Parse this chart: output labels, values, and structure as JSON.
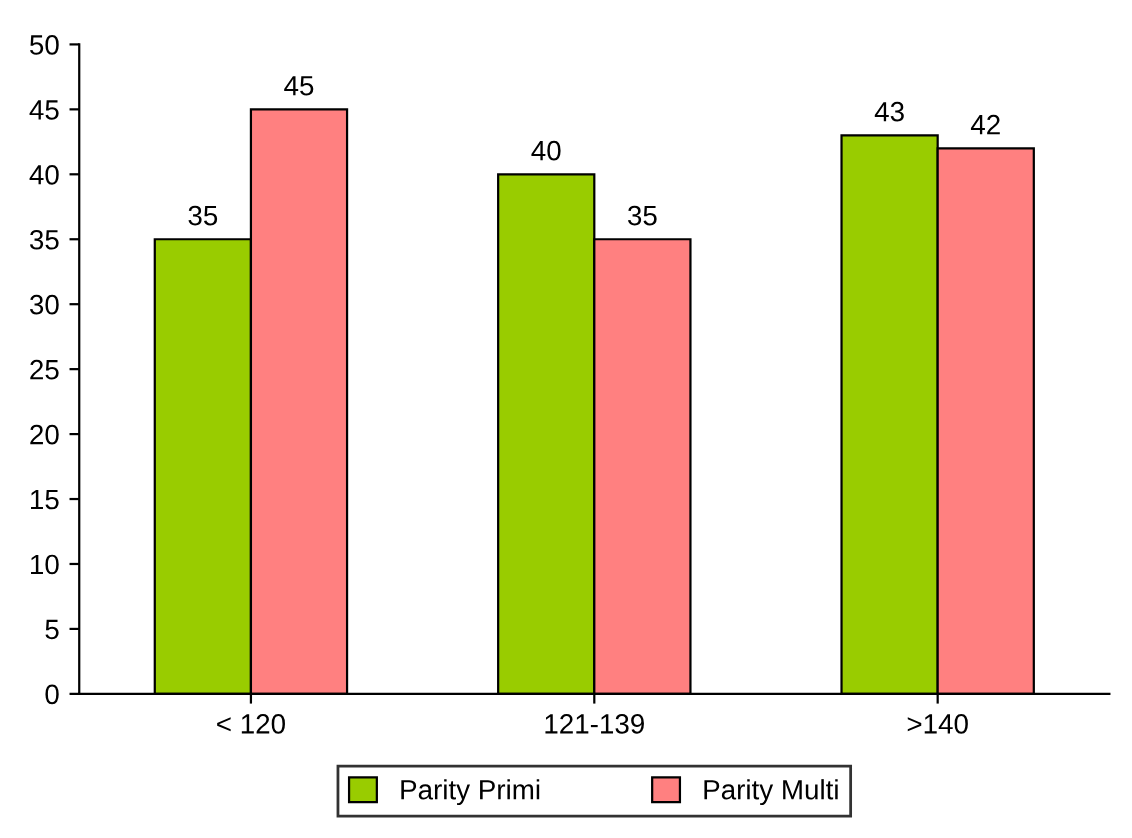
{
  "chart_data": {
    "type": "bar",
    "categories": [
      "< 120",
      "121-139",
      ">140"
    ],
    "series": [
      {
        "name": "Parity Primi",
        "color": "#99cc00",
        "values": [
          35,
          40,
          43
        ]
      },
      {
        "name": "Parity Multi",
        "color": "#ff8080",
        "values": [
          45,
          35,
          42
        ]
      }
    ],
    "ylim": [
      0,
      50
    ],
    "yticks": [
      0,
      5,
      10,
      15,
      20,
      25,
      30,
      35,
      40,
      45,
      50
    ],
    "data_labels": true,
    "grid": false,
    "legend": "bottom"
  }
}
